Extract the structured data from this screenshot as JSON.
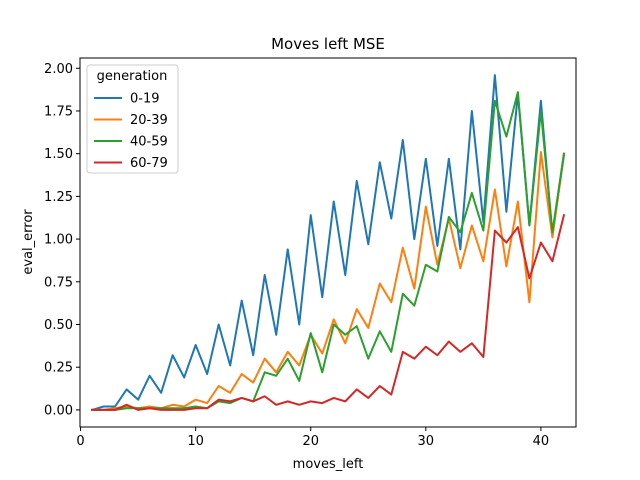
{
  "chart_data": {
    "type": "line",
    "title": "Moves left MSE",
    "xlabel": "moves_left",
    "ylabel": "eval_error",
    "xlim": [
      -0.05,
      43.05
    ],
    "ylim": [
      -0.1,
      2.06
    ],
    "xticks": [
      0,
      10,
      20,
      30,
      40
    ],
    "yticks": [
      0.0,
      0.25,
      0.5,
      0.75,
      1.0,
      1.25,
      1.5,
      1.75,
      2.0
    ],
    "xtick_labels": [
      "0",
      "10",
      "20",
      "30",
      "40"
    ],
    "ytick_labels": [
      "0.00",
      "0.25",
      "0.50",
      "0.75",
      "1.00",
      "1.25",
      "1.50",
      "1.75",
      "2.00"
    ],
    "legend_title": "generation",
    "legend_position": "top-left",
    "grid": false,
    "x": [
      1,
      2,
      3,
      4,
      5,
      6,
      7,
      8,
      9,
      10,
      11,
      12,
      13,
      14,
      15,
      16,
      17,
      18,
      19,
      20,
      21,
      22,
      23,
      24,
      25,
      26,
      27,
      28,
      29,
      30,
      31,
      32,
      33,
      34,
      35,
      36,
      37,
      38,
      39,
      40,
      41,
      42
    ],
    "series": [
      {
        "name": "0-19",
        "color": "#1f77b4",
        "values": [
          0.0,
          0.02,
          0.02,
          0.12,
          0.06,
          0.2,
          0.1,
          0.32,
          0.19,
          0.38,
          0.21,
          0.5,
          0.26,
          0.64,
          0.32,
          0.79,
          0.44,
          0.94,
          0.5,
          1.14,
          0.66,
          1.22,
          0.79,
          1.34,
          0.97,
          1.45,
          1.12,
          1.58,
          1.0,
          1.47,
          0.96,
          1.47,
          0.94,
          1.75,
          1.1,
          1.96,
          1.16,
          1.85,
          1.08,
          1.81,
          1.02,
          1.49
        ]
      },
      {
        "name": "20-39",
        "color": "#ff7f0e",
        "values": [
          0.0,
          0.0,
          0.01,
          0.02,
          0.01,
          0.02,
          0.01,
          0.03,
          0.02,
          0.06,
          0.04,
          0.14,
          0.1,
          0.21,
          0.16,
          0.3,
          0.22,
          0.34,
          0.26,
          0.44,
          0.33,
          0.53,
          0.39,
          0.59,
          0.48,
          0.74,
          0.63,
          0.95,
          0.71,
          1.19,
          0.85,
          1.12,
          0.83,
          1.08,
          0.87,
          1.29,
          0.84,
          1.22,
          0.63,
          1.51,
          1.01,
          1.5
        ]
      },
      {
        "name": "40-59",
        "color": "#2ca02c",
        "values": [
          0.0,
          0.0,
          0.0,
          0.01,
          0.01,
          0.01,
          0.01,
          0.01,
          0.01,
          0.02,
          0.01,
          0.05,
          0.04,
          0.07,
          0.05,
          0.22,
          0.2,
          0.3,
          0.17,
          0.45,
          0.22,
          0.5,
          0.44,
          0.49,
          0.3,
          0.46,
          0.34,
          0.68,
          0.61,
          0.85,
          0.81,
          1.13,
          1.04,
          1.27,
          1.05,
          1.81,
          1.6,
          1.86,
          1.08,
          1.75,
          1.04,
          1.5
        ]
      },
      {
        "name": "60-79",
        "color": "#d62728",
        "values": [
          0.0,
          0.0,
          0.0,
          0.03,
          0.0,
          0.01,
          0.0,
          0.0,
          0.0,
          0.01,
          0.01,
          0.06,
          0.05,
          0.07,
          0.05,
          0.08,
          0.03,
          0.05,
          0.03,
          0.05,
          0.04,
          0.07,
          0.05,
          0.12,
          0.07,
          0.14,
          0.09,
          0.34,
          0.3,
          0.37,
          0.32,
          0.4,
          0.34,
          0.39,
          0.31,
          1.05,
          0.98,
          1.07,
          0.77,
          0.98,
          0.87,
          1.14
        ]
      }
    ]
  }
}
